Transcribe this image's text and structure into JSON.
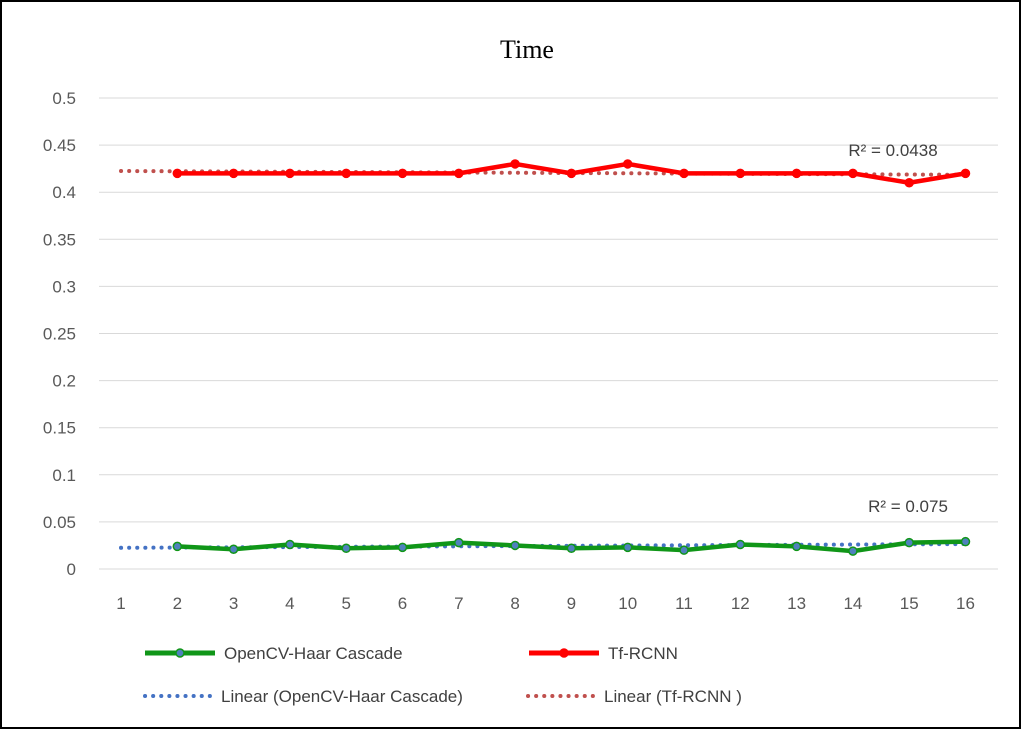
{
  "chart_data": {
    "type": "line",
    "title": "Time",
    "xlabel": "",
    "ylabel": "",
    "x": [
      1,
      2,
      3,
      4,
      5,
      6,
      7,
      8,
      9,
      10,
      11,
      12,
      13,
      14,
      15,
      16
    ],
    "ylim": [
      0,
      0.5
    ],
    "y_ticks": [
      "0",
      "0.05",
      "0.1",
      "0.15",
      "0.2",
      "0.25",
      "0.3",
      "0.35",
      "0.4",
      "0.45",
      "0.5"
    ],
    "grid": true,
    "legend_position": "bottom",
    "series": [
      {
        "name": "OpenCV-Haar Cascade",
        "color": "#109618",
        "marker_color": "#4f81bd",
        "x": [
          2,
          3,
          4,
          5,
          6,
          7,
          8,
          9,
          10,
          11,
          12,
          13,
          14,
          15,
          16
        ],
        "values": [
          0.024,
          0.021,
          0.026,
          0.022,
          0.023,
          0.028,
          0.025,
          0.022,
          0.023,
          0.02,
          0.026,
          0.024,
          0.019,
          0.028,
          0.029
        ]
      },
      {
        "name": "Tf-RCNN",
        "color": "#ff0000",
        "marker_color": "#ff0000",
        "x": [
          2,
          3,
          4,
          5,
          6,
          7,
          8,
          9,
          10,
          11,
          12,
          13,
          14,
          15,
          16
        ],
        "values": [
          0.42,
          0.42,
          0.42,
          0.42,
          0.42,
          0.42,
          0.43,
          0.42,
          0.43,
          0.42,
          0.42,
          0.42,
          0.42,
          0.41,
          0.42
        ]
      }
    ],
    "trendlines": [
      {
        "name": "Linear (OpenCV-Haar Cascade)",
        "color": "#4472c4",
        "x_range": [
          1,
          16
        ],
        "y_start": 0.0225,
        "y_end": 0.0265,
        "r_squared_label": "R² = 0.075"
      },
      {
        "name": "Linear (Tf-RCNN )",
        "color": "#c0504d",
        "x_range": [
          1,
          16
        ],
        "y_start": 0.4225,
        "y_end": 0.4185,
        "r_squared_label": "R² = 0.0438"
      }
    ]
  }
}
